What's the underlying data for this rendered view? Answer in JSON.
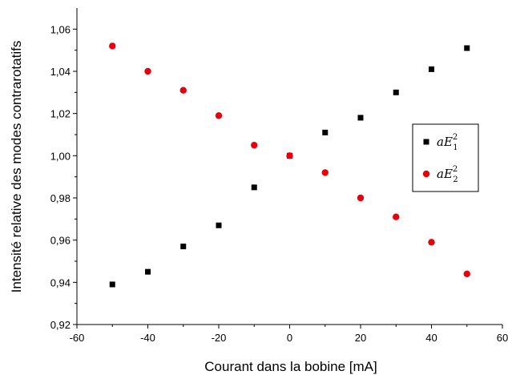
{
  "chart_data": {
    "type": "scatter",
    "xlabel": "Courant dans la bobine [mA]",
    "ylabel": "Intensité relative des modes contrarotatifs",
    "xlim": [
      -60,
      60
    ],
    "ylim": [
      0.92,
      1.07
    ],
    "x_ticks": [
      "-60",
      "-40",
      "-20",
      "0",
      "20",
      "40",
      "60"
    ],
    "y_ticks": [
      "0,92",
      "0,94",
      "0,96",
      "0,98",
      "1,00",
      "1,02",
      "1,04",
      "1,06"
    ],
    "grid": false,
    "legend_position": "right",
    "series": [
      {
        "name": "aE₁²",
        "legend_base": "aE",
        "legend_sub": "1",
        "legend_sup": "2",
        "marker": "square",
        "color": "#000000",
        "x": [
          -50,
          -40,
          -30,
          -20,
          -10,
          0,
          10,
          20,
          30,
          40,
          50
        ],
        "y": [
          0.939,
          0.945,
          0.957,
          0.967,
          0.985,
          1.0,
          1.011,
          1.018,
          1.03,
          1.041,
          1.051
        ]
      },
      {
        "name": "aE₂²",
        "legend_base": "aE",
        "legend_sub": "2",
        "legend_sup": "2",
        "marker": "circle",
        "color": "#e8000b",
        "x": [
          -50,
          -40,
          -30,
          -20,
          -10,
          0,
          10,
          20,
          30,
          40,
          50
        ],
        "y": [
          1.052,
          1.04,
          1.031,
          1.019,
          1.005,
          1.0,
          0.992,
          0.98,
          0.971,
          0.959,
          0.944
        ]
      }
    ]
  }
}
